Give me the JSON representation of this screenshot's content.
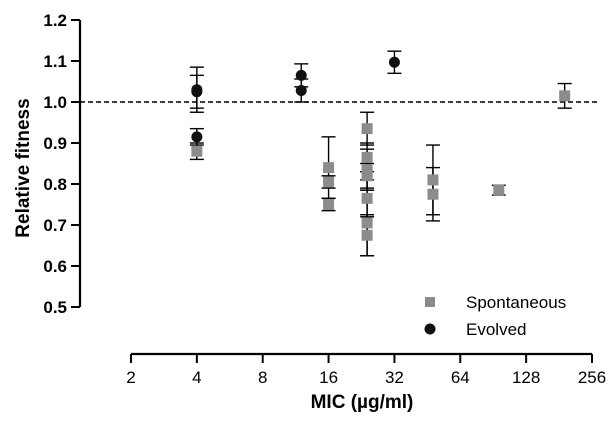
{
  "chart_data": {
    "type": "scatter",
    "xlabel": "MIC (µg/ml)",
    "ylabel": "Relative fitness",
    "x_scale": "log2",
    "x_ticks": [
      2,
      4,
      8,
      16,
      32,
      64,
      128,
      256
    ],
    "y_ticks": [
      0.5,
      0.6,
      0.7,
      0.8,
      0.9,
      1.0,
      1.1,
      1.2
    ],
    "xlim": [
      2,
      256
    ],
    "ylim": [
      0.5,
      1.2
    ],
    "reference_line": {
      "y": 1.0,
      "style": "dashed"
    },
    "legend_position": "bottom-right",
    "series": [
      {
        "name": "Spontaneous",
        "marker": "square",
        "color": "#8c8c8c",
        "points": [
          {
            "x": 4,
            "y": 0.88,
            "err": 0.02
          },
          {
            "x": 16,
            "y": 0.84,
            "err": 0.075
          },
          {
            "x": 16,
            "y": 0.805,
            "err": 0.015
          },
          {
            "x": 16,
            "y": 0.75,
            "err": 0.015
          },
          {
            "x": 24,
            "y": 0.935,
            "err": 0.04
          },
          {
            "x": 24,
            "y": 0.865,
            "err": 0.035
          },
          {
            "x": 24,
            "y": 0.835,
            "err": 0.05
          },
          {
            "x": 24,
            "y": 0.82,
            "err": 0.03
          },
          {
            "x": 24,
            "y": 0.765,
            "err": 0.045
          },
          {
            "x": 24,
            "y": 0.705,
            "err": 0.08
          },
          {
            "x": 24,
            "y": 0.675,
            "err": 0.05
          },
          {
            "x": 48,
            "y": 0.81,
            "err": 0.085
          },
          {
            "x": 48,
            "y": 0.775,
            "err": 0.065
          },
          {
            "x": 96,
            "y": 0.785,
            "err": 0.012
          },
          {
            "x": 192,
            "y": 1.015,
            "err": 0.03
          }
        ]
      },
      {
        "name": "Evolved",
        "marker": "circle",
        "color": "#111111",
        "points": [
          {
            "x": 4,
            "y": 1.03,
            "err": 0.055
          },
          {
            "x": 4,
            "y": 1.025,
            "err": 0.04
          },
          {
            "x": 4,
            "y": 0.915,
            "err": 0.02
          },
          {
            "x": 12,
            "y": 1.065,
            "err": 0.028
          },
          {
            "x": 12,
            "y": 1.028,
            "err": 0.028
          },
          {
            "x": 32,
            "y": 1.097,
            "err": 0.027
          }
        ]
      }
    ]
  }
}
